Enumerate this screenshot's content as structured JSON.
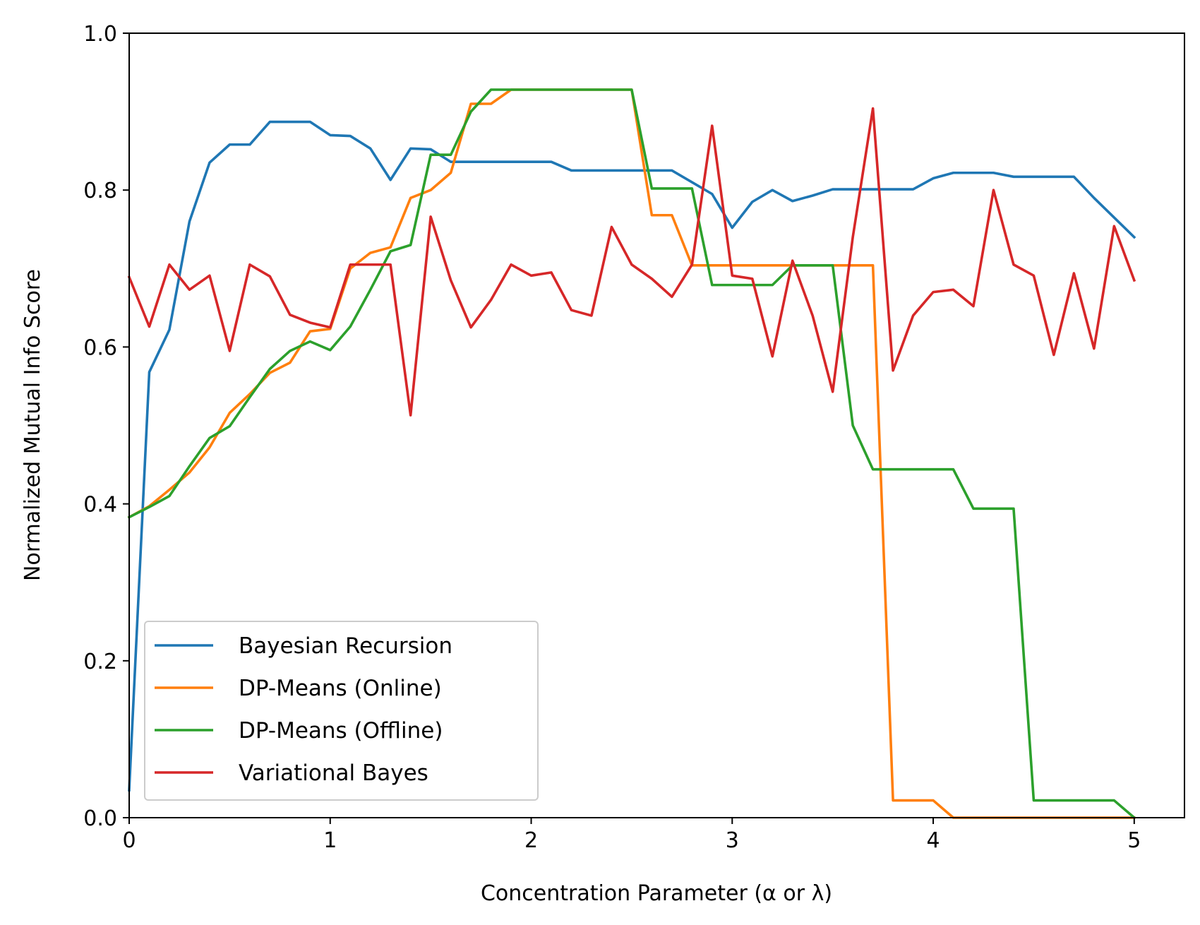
{
  "chart_data": {
    "type": "line",
    "title": "",
    "xlabel": "Concentration Parameter (α or λ)",
    "ylabel": "Normalized Mutual Info Score",
    "xlim": [
      0,
      5.25
    ],
    "ylim": [
      0,
      1.0
    ],
    "xticks": [
      {
        "value": 0,
        "label": "0"
      },
      {
        "value": 1,
        "label": "1"
      },
      {
        "value": 2,
        "label": "2"
      },
      {
        "value": 3,
        "label": "3"
      },
      {
        "value": 4,
        "label": "4"
      },
      {
        "value": 5,
        "label": "5"
      }
    ],
    "yticks": [
      {
        "value": 0.0,
        "label": "0.0"
      },
      {
        "value": 0.2,
        "label": "0.2"
      },
      {
        "value": 0.4,
        "label": "0.4"
      },
      {
        "value": 0.6,
        "label": "0.6"
      },
      {
        "value": 0.8,
        "label": "0.8"
      },
      {
        "value": 1.0,
        "label": "1.0"
      }
    ],
    "grid": false,
    "legend_position": "lower-left",
    "x": [
      0.0,
      0.1,
      0.2,
      0.3,
      0.4,
      0.5,
      0.6,
      0.7,
      0.8,
      0.9,
      1.0,
      1.1,
      1.2,
      1.3,
      1.4,
      1.5,
      1.6,
      1.7,
      1.8,
      1.9,
      2.0,
      2.1,
      2.2,
      2.3,
      2.4,
      2.5,
      2.6,
      2.7,
      2.8,
      2.9,
      3.0,
      3.1,
      3.2,
      3.3,
      3.4,
      3.5,
      3.6,
      3.7,
      3.8,
      3.9,
      4.0,
      4.1,
      4.2,
      4.3,
      4.4,
      4.5,
      4.6,
      4.7,
      4.8,
      4.9,
      5.0
    ],
    "series": [
      {
        "name": "Bayesian Recursion",
        "color": "#1f77b4",
        "values": [
          0.035,
          0.568,
          0.622,
          0.76,
          0.835,
          0.858,
          0.858,
          0.887,
          0.887,
          0.887,
          0.87,
          0.869,
          0.853,
          0.813,
          0.853,
          0.852,
          0.836,
          0.836,
          0.836,
          0.836,
          0.836,
          0.836,
          0.825,
          0.825,
          0.825,
          0.825,
          0.825,
          0.825,
          0.81,
          0.795,
          0.752,
          0.785,
          0.8,
          0.786,
          0.793,
          0.801,
          0.801,
          0.801,
          0.801,
          0.801,
          0.815,
          0.822,
          0.822,
          0.822,
          0.817,
          0.817,
          0.817,
          0.817,
          0.79,
          0.765,
          0.74
        ]
      },
      {
        "name": "DP-Means (Online)",
        "color": "#ff7f0e",
        "values": [
          0.383,
          0.397,
          0.418,
          0.44,
          0.472,
          0.516,
          0.54,
          0.567,
          0.58,
          0.62,
          0.623,
          0.7,
          0.72,
          0.727,
          0.79,
          0.8,
          0.822,
          0.91,
          0.91,
          0.928,
          0.928,
          0.928,
          0.928,
          0.928,
          0.928,
          0.928,
          0.768,
          0.768,
          0.704,
          0.704,
          0.704,
          0.704,
          0.704,
          0.704,
          0.704,
          0.704,
          0.704,
          0.704,
          0.022,
          0.022,
          0.022,
          0.0,
          0.0,
          0.0,
          0.0,
          0.0,
          0.0,
          0.0,
          0.0,
          0.0,
          0.0
        ]
      },
      {
        "name": "DP-Means (Offline)",
        "color": "#2ca02c",
        "values": [
          0.383,
          0.396,
          0.41,
          0.448,
          0.484,
          0.499,
          0.536,
          0.572,
          0.595,
          0.607,
          0.596,
          0.626,
          0.673,
          0.722,
          0.73,
          0.845,
          0.845,
          0.9,
          0.928,
          0.928,
          0.928,
          0.928,
          0.928,
          0.928,
          0.928,
          0.928,
          0.802,
          0.802,
          0.802,
          0.679,
          0.679,
          0.679,
          0.679,
          0.704,
          0.704,
          0.704,
          0.5,
          0.444,
          0.444,
          0.444,
          0.444,
          0.444,
          0.394,
          0.394,
          0.394,
          0.022,
          0.022,
          0.022,
          0.022,
          0.022,
          0.0
        ]
      },
      {
        "name": "Variational Bayes",
        "color": "#d62728",
        "values": [
          0.689,
          0.626,
          0.705,
          0.673,
          0.691,
          0.595,
          0.705,
          0.69,
          0.641,
          0.631,
          0.625,
          0.705,
          0.705,
          0.705,
          0.513,
          0.766,
          0.685,
          0.625,
          0.66,
          0.705,
          0.691,
          0.695,
          0.647,
          0.64,
          0.753,
          0.705,
          0.687,
          0.664,
          0.705,
          0.882,
          0.691,
          0.687,
          0.588,
          0.71,
          0.64,
          0.543,
          0.74,
          0.904,
          0.57,
          0.64,
          0.67,
          0.673,
          0.652,
          0.8,
          0.705,
          0.691,
          0.59,
          0.694,
          0.598,
          0.754,
          0.685
        ]
      }
    ]
  }
}
